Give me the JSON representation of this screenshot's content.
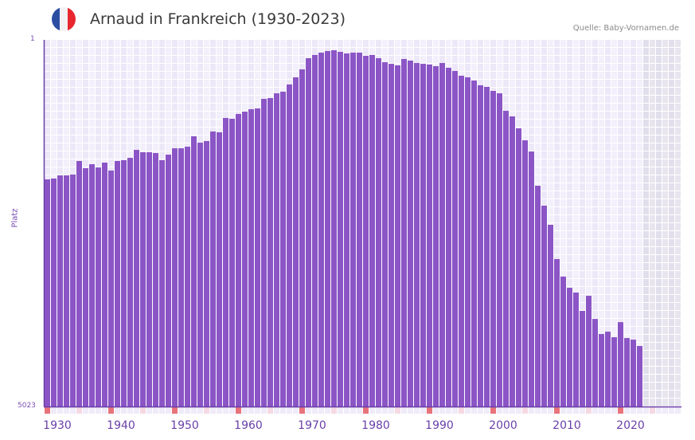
{
  "header": {
    "title": "Arnaud in Frankreich (1930-2023)",
    "source": "Quelle: Baby-Vornamen.de",
    "flag_colors": [
      "#2b4ea3",
      "#f2f2f4",
      "#e8262e"
    ]
  },
  "axis": {
    "y_title": "Platz",
    "y_top_label": "1",
    "y_bottom_label": "5023",
    "x_labels": [
      "1930",
      "1940",
      "1950",
      "1960",
      "1970",
      "1980",
      "1990",
      "2000",
      "2010",
      "2020"
    ]
  },
  "colors": {
    "bar": "#8b55c6",
    "axis": "#6a3fa8",
    "grid_a": "#ede8f8",
    "grid_b": "#f3f0fc",
    "future_a": "#e2dfec",
    "future_b": "#e8e5ef",
    "decade_marker": "#e8737b",
    "half_decade_marker": "#f5d9e3",
    "marker_bg": "#efebf8"
  },
  "chart_data": {
    "type": "bar",
    "title": "Arnaud in Frankreich (1930-2023)",
    "xlabel": "",
    "ylabel": "Platz",
    "y_inverted": true,
    "ylim": [
      1,
      5023
    ],
    "x_range": [
      1930,
      2029
    ],
    "grid": true,
    "legend": null,
    "annotations": [
      "Quelle: Baby-Vornamen.de"
    ],
    "categories": [
      1930,
      1931,
      1932,
      1933,
      1934,
      1935,
      1936,
      1937,
      1938,
      1939,
      1940,
      1941,
      1942,
      1943,
      1944,
      1945,
      1946,
      1947,
      1948,
      1949,
      1950,
      1951,
      1952,
      1953,
      1954,
      1955,
      1956,
      1957,
      1958,
      1959,
      1960,
      1961,
      1962,
      1963,
      1964,
      1965,
      1966,
      1967,
      1968,
      1969,
      1970,
      1971,
      1972,
      1973,
      1974,
      1975,
      1976,
      1977,
      1978,
      1979,
      1980,
      1981,
      1982,
      1983,
      1984,
      1985,
      1986,
      1987,
      1988,
      1989,
      1990,
      1991,
      1992,
      1993,
      1994,
      1995,
      1996,
      1997,
      1998,
      1999,
      2000,
      2001,
      2002,
      2003,
      2004,
      2005,
      2006,
      2007,
      2008,
      2009,
      2010,
      2011,
      2012,
      2013,
      2014,
      2015,
      2016,
      2017,
      2018,
      2019,
      2020,
      2021,
      2022,
      2023
    ],
    "values": [
      1912,
      1900,
      1857,
      1857,
      1846,
      1660,
      1759,
      1704,
      1748,
      1682,
      1791,
      1660,
      1649,
      1617,
      1508,
      1540,
      1540,
      1551,
      1649,
      1573,
      1486,
      1486,
      1464,
      1322,
      1409,
      1387,
      1256,
      1267,
      1071,
      1082,
      1016,
      984,
      951,
      940,
      809,
      798,
      733,
      711,
      612,
      514,
      405,
      252,
      208,
      176,
      154,
      143,
      165,
      187,
      176,
      176,
      219,
      208,
      252,
      307,
      329,
      350,
      263,
      285,
      318,
      329,
      339,
      361,
      318,
      383,
      427,
      492,
      514,
      558,
      623,
      645,
      700,
      733,
      973,
      1049,
      1213,
      1377,
      1530,
      1999,
      2272,
      2534,
      3003,
      3243,
      3396,
      3462,
      3713,
      3506,
      3823,
      4030,
      3998,
      4074,
      3867,
      4085,
      4107,
      4194
    ]
  }
}
